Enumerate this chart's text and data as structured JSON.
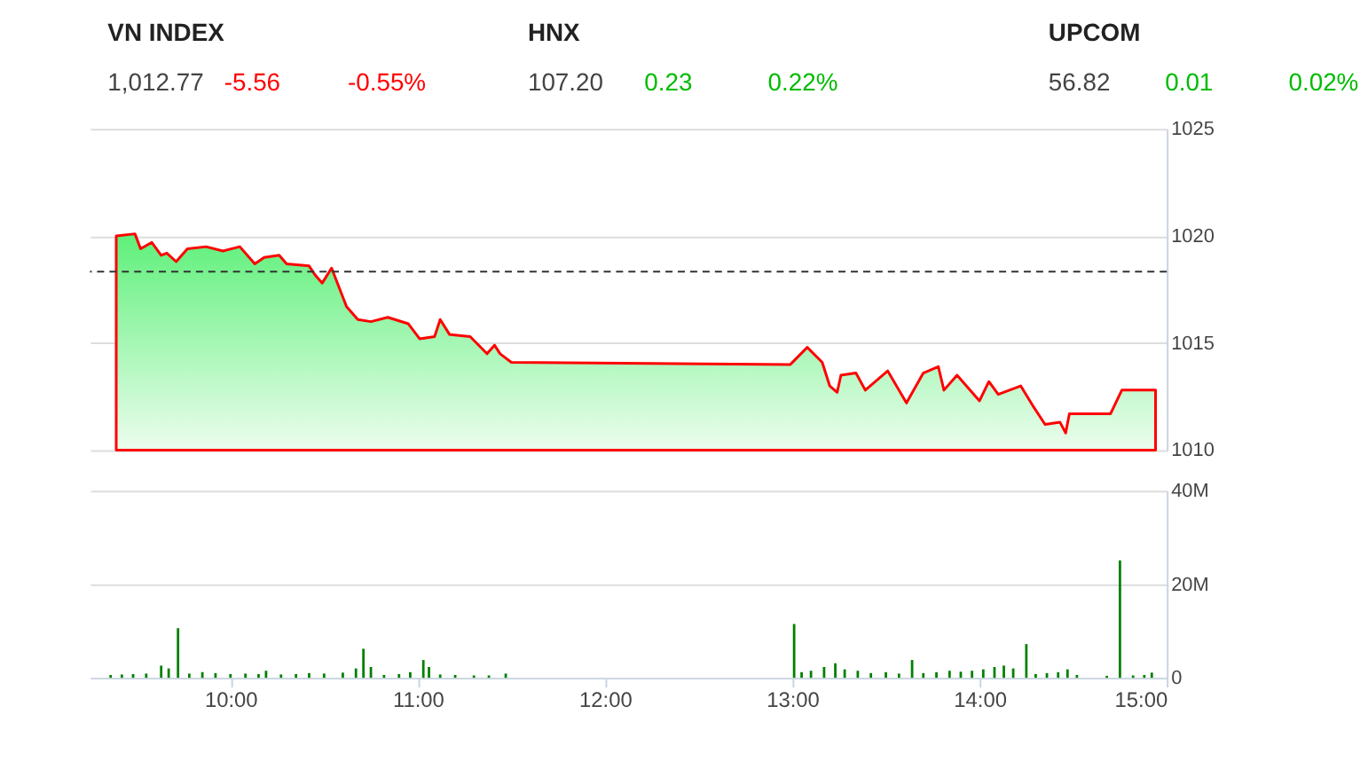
{
  "chart_data": [
    {
      "type": "other",
      "annotations": [
        "VN INDEX",
        "1,012.77",
        "-5.56",
        "-0.55%",
        "HNX",
        "107.20",
        "0.23",
        "0.22%",
        "UPCOM",
        "56.82",
        "0.01",
        "0.02%"
      ],
      "colors": [
        "#222222",
        "#444444",
        "#ff0000",
        "#ff0000",
        "#222222",
        "#444444",
        "#00bb00",
        "#00bb00",
        "#222222",
        "#444444",
        "#00bb00",
        "#00bb00"
      ]
    },
    {
      "type": "area",
      "xlim": [
        9.25,
        15
      ],
      "ylim": [
        1010,
        1025
      ],
      "yticks": [
        1010,
        1015,
        1020,
        1025
      ],
      "grid": "y",
      "tick_labels": "y",
      "ref_lines": [
        {
          "axis": "y",
          "value": 1018.33,
          "color": "#333333",
          "line_style": "dashed"
        }
      ],
      "series": [
        {
          "color": "#ff0000",
          "x": [
            9.39,
            9.49,
            9.52,
            9.58,
            9.63,
            9.66,
            9.71,
            9.77,
            9.87,
            9.96,
            10.05,
            10.13,
            10.18,
            10.26,
            10.3,
            10.42,
            10.45,
            10.49,
            10.54,
            10.62,
            10.68,
            10.75,
            10.84,
            10.95,
            11.01,
            11.09,
            11.12,
            11.17,
            11.28,
            11.37,
            11.41,
            11.44,
            11.5,
            12.99,
            13.08,
            13.16,
            13.2,
            13.24,
            13.26,
            13.34,
            13.39,
            13.51,
            13.61,
            13.7,
            13.78,
            13.81,
            13.88,
            14.0,
            14.05,
            14.1,
            14.22,
            14.29,
            14.35,
            14.43,
            14.46,
            14.48,
            14.7,
            14.76,
            14.94
          ],
          "values": [
            1020.0,
            1020.1,
            1019.4,
            1019.7,
            1019.1,
            1019.2,
            1018.8,
            1019.4,
            1019.5,
            1019.3,
            1019.5,
            1018.7,
            1019.0,
            1019.1,
            1018.7,
            1018.6,
            1018.2,
            1017.8,
            1018.5,
            1016.7,
            1016.1,
            1016.0,
            1016.2,
            1015.9,
            1015.2,
            1015.3,
            1016.1,
            1015.4,
            1015.3,
            1014.5,
            1014.9,
            1014.5,
            1014.1,
            1014.0,
            1014.8,
            1014.1,
            1013.0,
            1012.7,
            1013.5,
            1013.6,
            1012.8,
            1013.7,
            1012.2,
            1013.6,
            1013.9,
            1012.8,
            1013.5,
            1012.3,
            1013.2,
            1012.6,
            1013.0,
            1012.0,
            1011.2,
            1011.3,
            1010.8,
            1011.7,
            1011.7,
            1012.8,
            1012.8
          ]
        }
      ]
    },
    {
      "type": "bar",
      "xlim": [
        9.25,
        15
      ],
      "xticks": [
        {
          "value": 10,
          "label": "10:00"
        },
        {
          "value": 11,
          "label": "11:00"
        },
        {
          "value": 12,
          "label": "12:00"
        },
        {
          "value": 13,
          "label": "13:00"
        },
        {
          "value": 14,
          "label": "14:00"
        },
        {
          "value": 15,
          "label": "15:00"
        }
      ],
      "ylim": [
        0,
        40
      ],
      "yticks": [
        0,
        {
          "value": 20,
          "label": "20M"
        },
        {
          "value": 40,
          "label": "40M"
        }
      ],
      "grid": "y",
      "series": [
        {
          "color": "#008000",
          "x": [
            9.36,
            9.42,
            9.48,
            9.55,
            9.63,
            9.67,
            9.72,
            9.78,
            9.85,
            9.92,
            10.0,
            10.08,
            10.15,
            10.19,
            10.27,
            10.35,
            10.42,
            10.5,
            10.6,
            10.67,
            10.71,
            10.75,
            10.82,
            10.9,
            10.96,
            11.03,
            11.06,
            11.12,
            11.2,
            11.3,
            11.38,
            11.47,
            13.01,
            13.05,
            13.1,
            13.17,
            13.23,
            13.28,
            13.35,
            13.42,
            13.5,
            13.57,
            13.64,
            13.7,
            13.77,
            13.84,
            13.9,
            13.96,
            14.02,
            14.08,
            14.13,
            14.18,
            14.25,
            14.3,
            14.36,
            14.42,
            14.47,
            14.52,
            14.68,
            14.75,
            14.82,
            14.88,
            14.92
          ],
          "values": [
            0.6,
            0.7,
            0.8,
            0.9,
            2.6,
            2.0,
            10.6,
            0.9,
            1.2,
            1.0,
            0.8,
            0.9,
            0.8,
            1.5,
            0.7,
            0.8,
            1.0,
            0.9,
            1.1,
            2.0,
            6.2,
            2.3,
            0.6,
            0.8,
            1.2,
            3.8,
            2.3,
            0.7,
            0.6,
            0.5,
            0.5,
            0.9,
            11.5,
            1.2,
            1.5,
            2.3,
            3.1,
            1.8,
            1.5,
            1.0,
            1.2,
            0.9,
            3.8,
            1.0,
            1.2,
            1.5,
            1.3,
            1.5,
            1.8,
            2.3,
            2.6,
            2.0,
            7.2,
            0.8,
            1.0,
            1.2,
            1.8,
            0.6,
            0.4,
            25.1,
            0.5,
            0.6,
            1.1
          ]
        }
      ]
    }
  ]
}
